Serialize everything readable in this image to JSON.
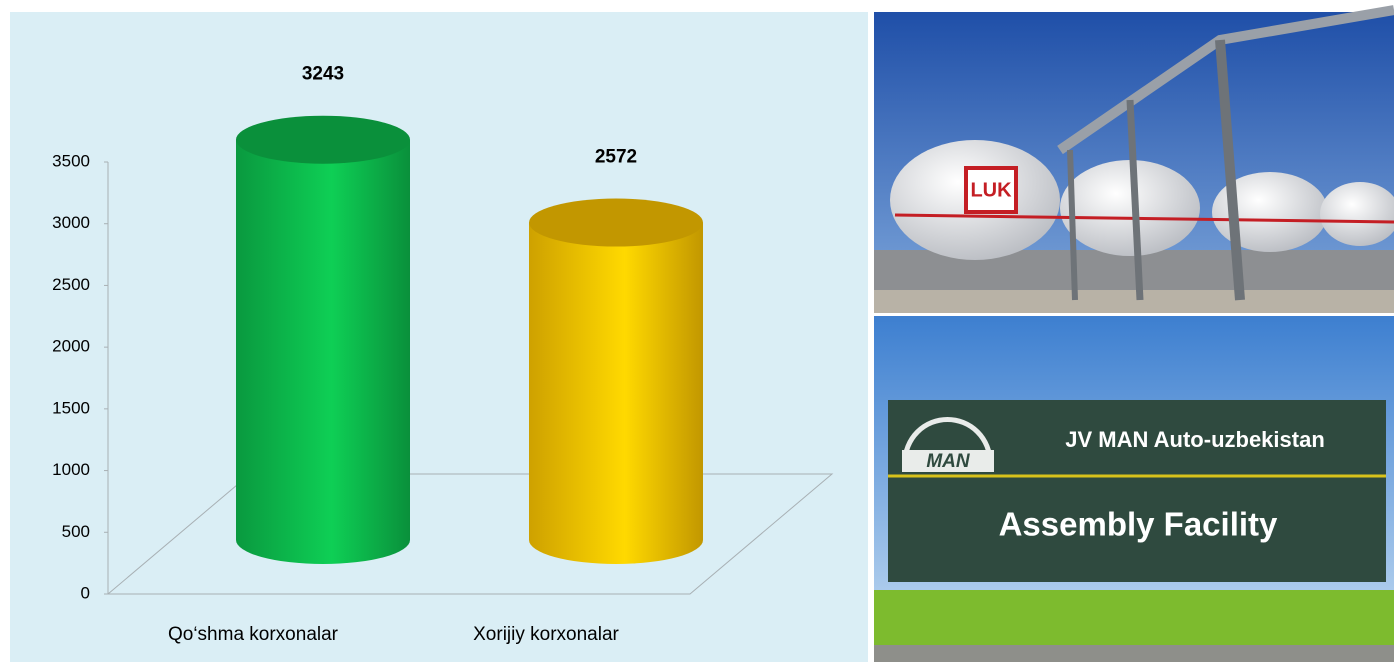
{
  "chart_data": {
    "type": "cylinder",
    "categories": [
      "Qo‘shma korxonalar",
      "Xorijiy korxonalar"
    ],
    "values": [
      3243,
      2572
    ],
    "colors": [
      "#0cb44a",
      "#f2bd00"
    ],
    "ylim": [
      0,
      3500
    ],
    "yticks": [
      0,
      500,
      1000,
      1500,
      2000,
      2500,
      3000,
      3500
    ],
    "grid": false
  },
  "photos": {
    "tank_logo": "LUK",
    "sign_logo": "MAN",
    "sign_line1": "JV MAN Auto-uzbekistan",
    "sign_line2": "Assembly Facility"
  }
}
